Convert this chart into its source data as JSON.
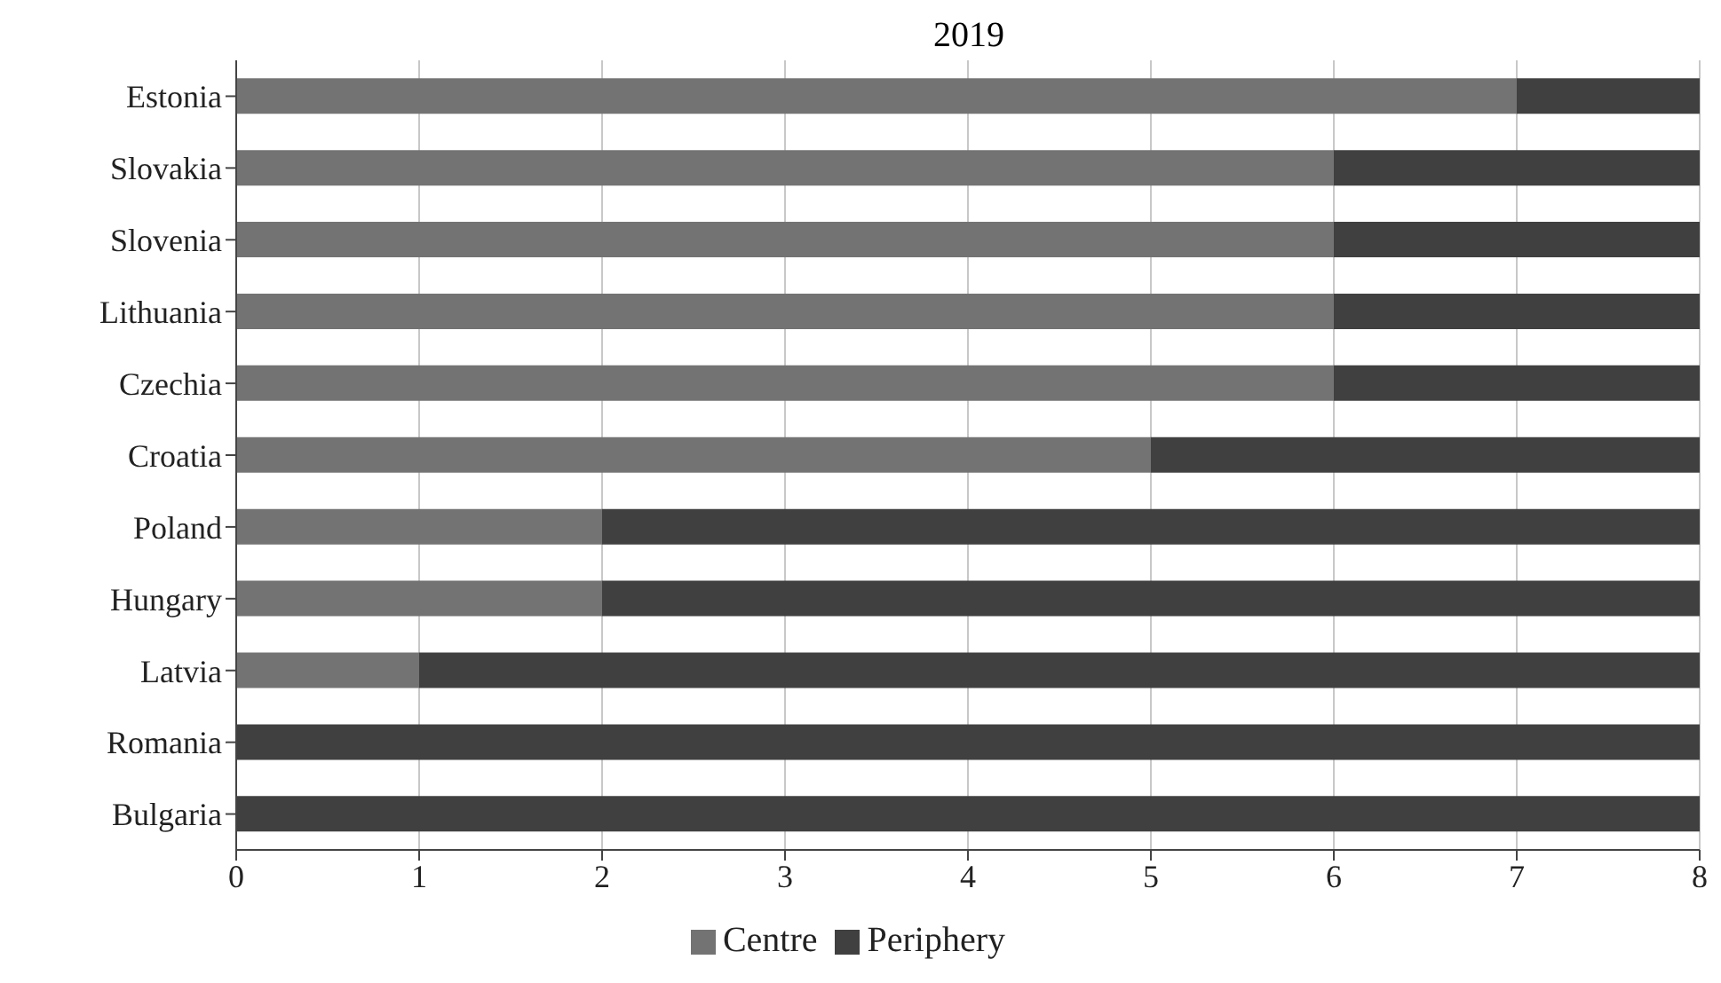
{
  "chart_data": {
    "type": "bar",
    "title": "2019",
    "orientation": "horizontal",
    "stacked": true,
    "categories": [
      "Estonia",
      "Slovakia",
      "Slovenia",
      "Lithuania",
      "Czechia",
      "Croatia",
      "Poland",
      "Hungary",
      "Latvia",
      "Romania",
      "Bulgaria"
    ],
    "series": [
      {
        "name": "Centre",
        "color": "#737373",
        "values": [
          7,
          6,
          6,
          6,
          6,
          5,
          2,
          2,
          1,
          0,
          0
        ]
      },
      {
        "name": "Periphery",
        "color": "#404040",
        "values": [
          1,
          2,
          2,
          2,
          2,
          3,
          6,
          6,
          7,
          8,
          8
        ]
      }
    ],
    "xlim": [
      0,
      8
    ],
    "xticks": [
      0,
      1,
      2,
      3,
      4,
      5,
      6,
      7,
      8
    ],
    "grid": "x",
    "legend": "bottom"
  }
}
